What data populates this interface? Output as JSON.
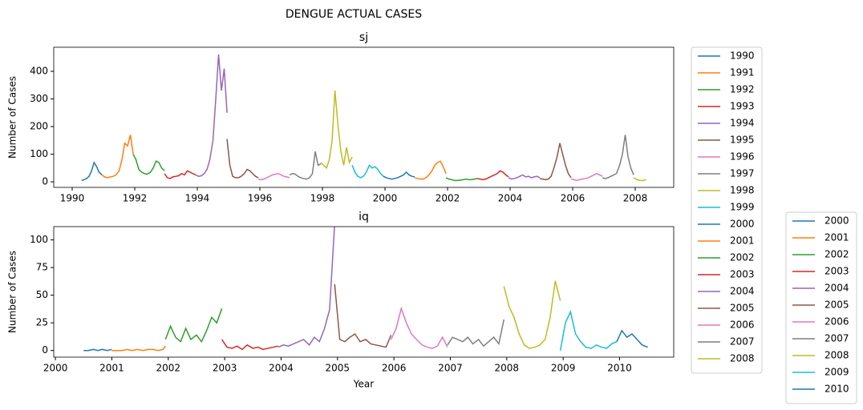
{
  "title": "DENGUE ACTUAL CASES",
  "chart_data": [
    {
      "type": "line",
      "title": "sj",
      "ylabel": "Number of Cases",
      "xlim": [
        1989.41,
        2009.23
      ],
      "ylim": [
        -20,
        487
      ],
      "xticks": [
        1990,
        1992,
        1994,
        1996,
        1998,
        2000,
        2002,
        2004,
        2006,
        2008
      ],
      "yticks": [
        0,
        100,
        200,
        300,
        400
      ],
      "grid": false,
      "legend": "outside right",
      "series": [
        {
          "name": "1990",
          "color": "#1f77b4",
          "x": [
            1990.3,
            1990.38,
            1990.46,
            1990.54,
            1990.62,
            1990.7,
            1990.78,
            1990.86,
            1990.95
          ],
          "values": [
            5,
            8,
            12,
            20,
            40,
            70,
            55,
            35,
            25
          ]
        },
        {
          "name": "1991",
          "color": "#ff7f0e",
          "x": [
            1990.95,
            1991.04,
            1991.13,
            1991.22,
            1991.31,
            1991.4,
            1991.5,
            1991.59,
            1991.68,
            1991.77,
            1991.86,
            1991.95
          ],
          "values": [
            25,
            18,
            15,
            18,
            20,
            25,
            40,
            80,
            140,
            130,
            170,
            100
          ]
        },
        {
          "name": "1992",
          "color": "#2ca02c",
          "x": [
            1991.95,
            1992.04,
            1992.13,
            1992.22,
            1992.31,
            1992.4,
            1992.5,
            1992.59,
            1992.68,
            1992.77,
            1992.86,
            1992.95
          ],
          "values": [
            100,
            80,
            45,
            35,
            30,
            28,
            35,
            50,
            75,
            70,
            50,
            40
          ]
        },
        {
          "name": "1993",
          "color": "#d62728",
          "x": [
            1992.95,
            1993.04,
            1993.13,
            1993.22,
            1993.31,
            1993.4,
            1993.5,
            1993.59,
            1993.68,
            1993.77,
            1993.86,
            1993.95
          ],
          "values": [
            30,
            15,
            12,
            18,
            20,
            22,
            30,
            25,
            40,
            35,
            30,
            25
          ]
        },
        {
          "name": "1994",
          "color": "#9467bd",
          "x": [
            1993.95,
            1994.04,
            1994.13,
            1994.22,
            1994.31,
            1994.4,
            1994.5,
            1994.59,
            1994.68,
            1994.77,
            1994.86,
            1994.95
          ],
          "values": [
            25,
            20,
            22,
            30,
            45,
            80,
            150,
            300,
            461,
            330,
            410,
            250
          ]
        },
        {
          "name": "1995",
          "color": "#8c564b",
          "x": [
            1994.95,
            1995.04,
            1995.13,
            1995.22,
            1995.31,
            1995.4,
            1995.5,
            1995.59,
            1995.68,
            1995.77,
            1995.86,
            1995.95
          ],
          "values": [
            155,
            60,
            20,
            15,
            15,
            20,
            30,
            45,
            40,
            30,
            20,
            15
          ]
        },
        {
          "name": "1996",
          "color": "#e377c2",
          "x": [
            1995.95,
            1996.04,
            1996.13,
            1996.22,
            1996.31,
            1996.4,
            1996.5,
            1996.59,
            1996.68,
            1996.77,
            1996.86,
            1996.95
          ],
          "values": [
            10,
            8,
            10,
            15,
            20,
            25,
            28,
            30,
            25,
            20,
            18,
            15
          ]
        },
        {
          "name": "1997",
          "color": "#7f7f7f",
          "x": [
            1996.95,
            1997.04,
            1997.13,
            1997.22,
            1997.31,
            1997.4,
            1997.5,
            1997.59,
            1997.68,
            1997.77,
            1997.86,
            1997.95
          ],
          "values": [
            25,
            30,
            28,
            20,
            15,
            12,
            10,
            15,
            30,
            110,
            60,
            65
          ]
        },
        {
          "name": "1998",
          "color": "#bcbd22",
          "x": [
            1997.95,
            1998.04,
            1998.13,
            1998.22,
            1998.31,
            1998.4,
            1998.5,
            1998.59,
            1998.68,
            1998.77,
            1998.86,
            1998.95
          ],
          "values": [
            70,
            60,
            50,
            80,
            150,
            330,
            200,
            110,
            60,
            125,
            70,
            90
          ]
        },
        {
          "name": "1999",
          "color": "#17becf",
          "x": [
            1998.95,
            1999.04,
            1999.13,
            1999.22,
            1999.31,
            1999.4,
            1999.5,
            1999.59,
            1999.68,
            1999.77,
            1999.86,
            1999.95
          ],
          "values": [
            60,
            35,
            20,
            15,
            20,
            35,
            60,
            50,
            55,
            45,
            30,
            20
          ]
        },
        {
          "name": "2000",
          "color": "#1f77b4",
          "x": [
            1999.95,
            2000.04,
            2000.13,
            2000.22,
            2000.31,
            2000.4,
            2000.5,
            2000.59,
            2000.68,
            2000.77,
            2000.86,
            2000.95
          ],
          "values": [
            20,
            15,
            12,
            10,
            12,
            15,
            20,
            25,
            35,
            25,
            20,
            18
          ]
        },
        {
          "name": "2001",
          "color": "#ff7f0e",
          "x": [
            2000.95,
            2001.04,
            2001.13,
            2001.22,
            2001.31,
            2001.4,
            2001.5,
            2001.59,
            2001.68,
            2001.77,
            2001.86,
            2001.95
          ],
          "values": [
            15,
            12,
            10,
            10,
            15,
            25,
            40,
            60,
            70,
            75,
            55,
            30
          ]
        },
        {
          "name": "2002",
          "color": "#2ca02c",
          "x": [
            2001.95,
            2002.04,
            2002.13,
            2002.22,
            2002.31,
            2002.4,
            2002.5,
            2002.59,
            2002.68,
            2002.77,
            2002.86,
            2002.95
          ],
          "values": [
            15,
            10,
            8,
            5,
            5,
            6,
            8,
            10,
            8,
            8,
            10,
            12
          ]
        },
        {
          "name": "2003",
          "color": "#d62728",
          "x": [
            2002.95,
            2003.04,
            2003.13,
            2003.22,
            2003.31,
            2003.4,
            2003.5,
            2003.59,
            2003.68,
            2003.77,
            2003.86,
            2003.95
          ],
          "values": [
            12,
            10,
            8,
            10,
            15,
            20,
            25,
            30,
            40,
            35,
            25,
            18
          ]
        },
        {
          "name": "2004",
          "color": "#9467bd",
          "x": [
            2003.95,
            2004.04,
            2004.13,
            2004.22,
            2004.31,
            2004.4,
            2004.5,
            2004.59,
            2004.68,
            2004.77,
            2004.86,
            2004.95
          ],
          "values": [
            15,
            10,
            12,
            15,
            20,
            25,
            18,
            20,
            15,
            18,
            20,
            15
          ]
        },
        {
          "name": "2005",
          "color": "#8c564b",
          "x": [
            2004.95,
            2005.04,
            2005.13,
            2005.22,
            2005.31,
            2005.4,
            2005.5,
            2005.59,
            2005.68,
            2005.77,
            2005.86,
            2005.95
          ],
          "values": [
            12,
            10,
            8,
            10,
            20,
            50,
            90,
            140,
            100,
            60,
            30,
            15
          ]
        },
        {
          "name": "2006",
          "color": "#e377c2",
          "x": [
            2005.95,
            2006.04,
            2006.13,
            2006.22,
            2006.31,
            2006.4,
            2006.5,
            2006.59,
            2006.68,
            2006.77,
            2006.86,
            2006.95
          ],
          "values": [
            10,
            8,
            5,
            8,
            10,
            12,
            15,
            20,
            25,
            30,
            25,
            20
          ]
        },
        {
          "name": "2007",
          "color": "#7f7f7f",
          "x": [
            2006.95,
            2007.04,
            2007.13,
            2007.22,
            2007.31,
            2007.4,
            2007.5,
            2007.59,
            2007.68,
            2007.77,
            2007.86,
            2007.95
          ],
          "values": [
            15,
            12,
            15,
            20,
            25,
            30,
            60,
            100,
            170,
            90,
            50,
            25
          ]
        },
        {
          "name": "2008",
          "color": "#bcbd22",
          "x": [
            2007.95,
            2008.05,
            2008.15,
            2008.25,
            2008.35
          ],
          "values": [
            15,
            8,
            5,
            5,
            8
          ]
        }
      ]
    },
    {
      "type": "line",
      "title": "iq",
      "xlabel": "Year",
      "ylabel": "Number of Cases",
      "xlim": [
        1999.97,
        2010.96
      ],
      "ylim": [
        -6,
        112
      ],
      "xticks": [
        2000,
        2001,
        2002,
        2003,
        2004,
        2005,
        2006,
        2007,
        2008,
        2009,
        2010
      ],
      "yticks": [
        0,
        25,
        50,
        75,
        100
      ],
      "grid": false,
      "legend": "outside right",
      "series": [
        {
          "name": "2000",
          "color": "#1f77b4",
          "x": [
            2000.5,
            2000.58,
            2000.67,
            2000.75,
            2000.83,
            2000.92,
            2001.0
          ],
          "values": [
            0,
            0,
            1,
            0,
            1,
            0,
            1
          ]
        },
        {
          "name": "2001",
          "color": "#ff7f0e",
          "x": [
            2001.0,
            2001.09,
            2001.18,
            2001.27,
            2001.36,
            2001.45,
            2001.55,
            2001.64,
            2001.73,
            2001.82,
            2001.91,
            2001.95
          ],
          "values": [
            0,
            0,
            0,
            1,
            0,
            1,
            0,
            1,
            1,
            0,
            1,
            4
          ]
        },
        {
          "name": "2002",
          "color": "#2ca02c",
          "x": [
            2001.95,
            2002.04,
            2002.13,
            2002.22,
            2002.31,
            2002.4,
            2002.5,
            2002.59,
            2002.68,
            2002.77,
            2002.86,
            2002.95
          ],
          "values": [
            10,
            22,
            12,
            8,
            20,
            10,
            14,
            8,
            18,
            30,
            25,
            38
          ]
        },
        {
          "name": "2003",
          "color": "#d62728",
          "x": [
            2002.95,
            2003.04,
            2003.13,
            2003.22,
            2003.31,
            2003.4,
            2003.5,
            2003.59,
            2003.68,
            2003.77,
            2003.86,
            2003.95
          ],
          "values": [
            10,
            3,
            2,
            4,
            1,
            5,
            2,
            3,
            1,
            2,
            3,
            4
          ]
        },
        {
          "name": "2004",
          "color": "#9467bd",
          "x": [
            2003.95,
            2004.04,
            2004.13,
            2004.22,
            2004.31,
            2004.4,
            2004.5,
            2004.59,
            2004.68,
            2004.77,
            2004.86,
            2004.95
          ],
          "values": [
            3,
            5,
            4,
            6,
            8,
            10,
            5,
            12,
            8,
            20,
            37,
            115
          ]
        },
        {
          "name": "2005",
          "color": "#8c564b",
          "x": [
            2004.95,
            2005.04,
            2005.13,
            2005.22,
            2005.31,
            2005.4,
            2005.5,
            2005.59,
            2005.68,
            2005.77,
            2005.86,
            2005.95
          ],
          "values": [
            60,
            10,
            8,
            12,
            15,
            8,
            10,
            6,
            5,
            4,
            3,
            14
          ]
        },
        {
          "name": "2006",
          "color": "#e377c2",
          "x": [
            2005.95,
            2006.04,
            2006.13,
            2006.22,
            2006.31,
            2006.4,
            2006.5,
            2006.59,
            2006.68,
            2006.77,
            2006.86,
            2006.95
          ],
          "values": [
            10,
            20,
            38,
            25,
            15,
            10,
            5,
            3,
            2,
            4,
            12,
            3
          ]
        },
        {
          "name": "2007",
          "color": "#7f7f7f",
          "x": [
            2006.95,
            2007.04,
            2007.13,
            2007.22,
            2007.31,
            2007.4,
            2007.5,
            2007.59,
            2007.68,
            2007.77,
            2007.86,
            2007.95
          ],
          "values": [
            5,
            12,
            10,
            8,
            12,
            6,
            10,
            4,
            8,
            12,
            6,
            28
          ]
        },
        {
          "name": "2008",
          "color": "#bcbd22",
          "x": [
            2007.95,
            2008.04,
            2008.13,
            2008.22,
            2008.31,
            2008.4,
            2008.5,
            2008.59,
            2008.68,
            2008.77,
            2008.86,
            2008.95
          ],
          "values": [
            58,
            40,
            30,
            15,
            5,
            2,
            3,
            5,
            10,
            30,
            63,
            45
          ]
        },
        {
          "name": "2009",
          "color": "#17becf",
          "x": [
            2008.95,
            2009.04,
            2009.13,
            2009.22,
            2009.31,
            2009.4,
            2009.5,
            2009.59,
            2009.68,
            2009.77,
            2009.86,
            2009.95
          ],
          "values": [
            0,
            25,
            35,
            15,
            8,
            3,
            2,
            5,
            3,
            2,
            6,
            8
          ]
        },
        {
          "name": "2010",
          "color": "#1f77b4",
          "x": [
            2009.95,
            2010.04,
            2010.13,
            2010.22,
            2010.31,
            2010.4,
            2010.5
          ],
          "values": [
            8,
            18,
            12,
            15,
            10,
            5,
            3
          ]
        }
      ]
    }
  ]
}
